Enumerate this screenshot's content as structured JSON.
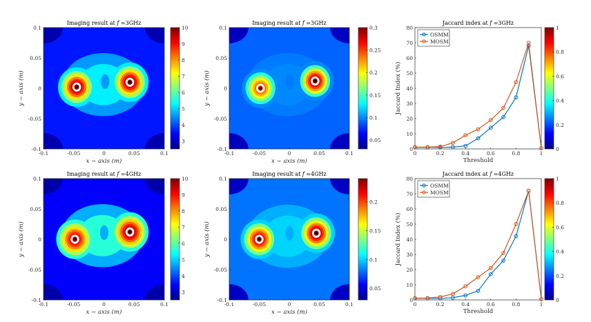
{
  "colorbar_gradient": [
    "#00008f",
    "#0000ff",
    "#0080ff",
    "#00ffff",
    "#80ff80",
    "#ffff00",
    "#ff8000",
    "#ff0000",
    "#800000"
  ],
  "line_colors": {
    "OSMM": "#0072bd",
    "MOSM": "#d95319"
  },
  "chart_data": [
    {
      "id": "img1",
      "type": "heatmap",
      "title": "Imaging result at f =3GHz",
      "title_prefix": "Imaging result at ",
      "title_var": "f",
      "title_suffix": " =3GHz",
      "xlabel": "x − axis (m)",
      "ylabel": "y − axis (m)",
      "xlim": [
        -0.1,
        0.1
      ],
      "ylim": [
        -0.1,
        0.1
      ],
      "xticks": [
        "-0.1",
        "-0.05",
        "0",
        "0.05",
        "0.1"
      ],
      "yticks": [
        "0.1",
        "0.05",
        "0",
        "-0.05",
        "-0.1"
      ],
      "clim": [
        2.5,
        10
      ],
      "colorbar_ticks": [
        "10",
        "9",
        "8",
        "7",
        "6",
        "5",
        "4",
        "3"
      ],
      "colorbar_values": [
        10,
        9,
        8,
        7,
        6,
        5,
        4,
        3
      ],
      "background_level": 3.6,
      "peaks": [
        {
          "x": -0.045,
          "y": 0.002,
          "value": 10
        },
        {
          "x": 0.043,
          "y": 0.01,
          "value": 10
        }
      ],
      "bridge_level": 5.2
    },
    {
      "id": "img2",
      "type": "heatmap",
      "title": "Imaging result at f =3GHz",
      "title_prefix": "Imaging result at ",
      "title_var": "f",
      "title_suffix": " =3GHz",
      "xlabel": "x − axis (m)",
      "ylabel": "y − axis (m)",
      "xlim": [
        -0.1,
        0.1
      ],
      "ylim": [
        -0.1,
        0.1
      ],
      "xticks": [
        "-0.1",
        "-0.05",
        "0",
        "0.05",
        "0.1"
      ],
      "yticks": [
        "0.1",
        "0.05",
        "0",
        "-0.05",
        "-0.1"
      ],
      "clim": [
        0.03,
        0.3
      ],
      "colorbar_ticks": [
        "0.3",
        "0.25",
        "0.2",
        "0.15",
        "0.1",
        "0.05"
      ],
      "colorbar_values": [
        0.3,
        0.25,
        0.2,
        0.15,
        0.1,
        0.05
      ],
      "background_level": 0.09,
      "peaks": [
        {
          "x": -0.048,
          "y": 0.0,
          "value": 0.26
        },
        {
          "x": 0.043,
          "y": 0.012,
          "value": 0.3
        }
      ],
      "bridge_level": 0.1
    },
    {
      "id": "jac1",
      "type": "line",
      "title": "Jaccard index at f =3GHz",
      "title_prefix": "Jaccard index at ",
      "title_var": "f",
      "title_suffix": " =3GHz",
      "xlabel": "Threshold",
      "ylabel": "Jaccard Index (%)",
      "xlim": [
        0,
        1
      ],
      "ylim": [
        0,
        80
      ],
      "xticks": [
        "0",
        "0.2",
        "0.4",
        "0.6",
        "0.8",
        "1"
      ],
      "xtick_values": [
        0,
        0.2,
        0.4,
        0.6,
        0.8,
        1
      ],
      "yticks": [
        "80",
        "70",
        "60",
        "50",
        "40",
        "30",
        "20",
        "10",
        "0"
      ],
      "ytick_values": [
        80,
        70,
        60,
        50,
        40,
        30,
        20,
        10,
        0
      ],
      "x": [
        0,
        0.1,
        0.2,
        0.3,
        0.4,
        0.5,
        0.6,
        0.7,
        0.8,
        0.9,
        1.0
      ],
      "series": [
        {
          "name": "OSMM",
          "values": [
            1,
            1,
            1,
            1.2,
            2,
            7,
            14,
            21,
            34,
            68,
            0.5
          ]
        },
        {
          "name": "MOSM",
          "values": [
            1.2,
            1.2,
            1.5,
            4,
            9,
            13,
            19,
            27,
            44,
            70,
            0.5
          ]
        }
      ],
      "legend": [
        "OSMM",
        "MOSM"
      ],
      "colorbar_ticks": [
        "1",
        "0.8",
        "0.6",
        "0.4",
        "0.2",
        "0"
      ],
      "colorbar_values": [
        1,
        0.8,
        0.6,
        0.4,
        0.2,
        0
      ]
    },
    {
      "id": "img3",
      "type": "heatmap",
      "title": "Imaging result at f =4GHz",
      "title_prefix": "Imaging result at ",
      "title_var": "f",
      "title_suffix": " =4GHz",
      "xlabel": "x − axis (m)",
      "ylabel": "y − axis (m)",
      "xlim": [
        -0.1,
        0.1
      ],
      "ylim": [
        -0.1,
        0.1
      ],
      "xticks": [
        "-0.1",
        "-0.05",
        "0",
        "0.05",
        "0.1"
      ],
      "yticks": [
        "0.1",
        "0.05",
        "0",
        "-0.05",
        "-0.1"
      ],
      "clim": [
        2.5,
        10
      ],
      "colorbar_ticks": [
        "10",
        "9",
        "8",
        "7",
        "6",
        "5",
        "4",
        "3"
      ],
      "colorbar_values": [
        10,
        9,
        8,
        7,
        6,
        5,
        4,
        3
      ],
      "background_level": 3.4,
      "peaks": [
        {
          "x": -0.048,
          "y": 0.0,
          "value": 9.6
        },
        {
          "x": 0.043,
          "y": 0.012,
          "value": 10
        }
      ],
      "bridge_level": 5.6
    },
    {
      "id": "img4",
      "type": "heatmap",
      "title": "Imaging result at f =4GHz",
      "title_prefix": "Imaging result at ",
      "title_var": "f",
      "title_suffix": " =4GHz",
      "xlabel": "x − axis (m)",
      "ylabel": "y − axis (m)",
      "xlim": [
        -0.1,
        0.1
      ],
      "ylim": [
        -0.1,
        0.1
      ],
      "xticks": [
        "-0.1",
        "-0.05",
        "0",
        "0.05",
        "0.1"
      ],
      "yticks": [
        "0.1",
        "0.05",
        "0",
        "-0.05",
        "-0.1"
      ],
      "clim": [
        0.03,
        0.24
      ],
      "colorbar_ticks": [
        "0.2",
        "0.15",
        "0.1",
        "0.05"
      ],
      "colorbar_values": [
        0.2,
        0.15,
        0.1,
        0.05
      ],
      "background_level": 0.08,
      "peaks": [
        {
          "x": -0.05,
          "y": 0.0,
          "value": 0.23
        },
        {
          "x": 0.045,
          "y": 0.01,
          "value": 0.24
        }
      ],
      "bridge_level": 0.1
    },
    {
      "id": "jac2",
      "type": "line",
      "title": "Jaccard index at f =4GHz",
      "title_prefix": "Jaccard index at ",
      "title_var": "f",
      "title_suffix": " =4GHz",
      "xlabel": "Threshold",
      "ylabel": "Jaccard Index (%)",
      "xlim": [
        0,
        1
      ],
      "ylim": [
        0,
        80
      ],
      "xticks": [
        "0",
        "0.2",
        "0.4",
        "0.6",
        "0.8",
        "1"
      ],
      "xtick_values": [
        0,
        0.2,
        0.4,
        0.6,
        0.8,
        1
      ],
      "yticks": [
        "80",
        "70",
        "60",
        "50",
        "40",
        "30",
        "20",
        "10",
        "0"
      ],
      "ytick_values": [
        80,
        70,
        60,
        50,
        40,
        30,
        20,
        10,
        0
      ],
      "x": [
        0,
        0.1,
        0.2,
        0.3,
        0.4,
        0.5,
        0.6,
        0.7,
        0.8,
        0.9,
        1.0
      ],
      "series": [
        {
          "name": "OSMM",
          "values": [
            1,
            1,
            1,
            1.5,
            3,
            6,
            17,
            26,
            42,
            72,
            0.5
          ]
        },
        {
          "name": "MOSM",
          "values": [
            1.2,
            1.2,
            2,
            4,
            9,
            15,
            21,
            31,
            50,
            72,
            0.5
          ]
        }
      ],
      "legend": [
        "OSMM",
        "MOSM"
      ],
      "colorbar_ticks": [
        "1",
        "0.8",
        "0.6",
        "0.4",
        "0.2",
        "0"
      ],
      "colorbar_values": [
        1,
        0.8,
        0.6,
        0.4,
        0.2,
        0
      ]
    }
  ]
}
